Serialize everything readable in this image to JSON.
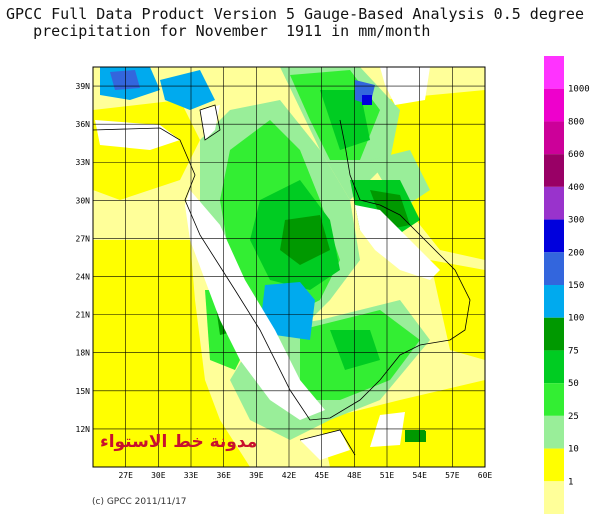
{
  "title": {
    "line1": "GPCC Full Data Product Version 5 Gauge-Based Analysis 0.5 degree",
    "line2": "precipitation for November  1911 in mm/month"
  },
  "map": {
    "lat_labels": [
      "39N",
      "36N",
      "33N",
      "30N",
      "27N",
      "24N",
      "21N",
      "18N",
      "15N",
      "12N"
    ],
    "lon_labels": [
      "27E",
      "30E",
      "33E",
      "36E",
      "39E",
      "42E",
      "45E",
      "48E",
      "51E",
      "54E",
      "57E",
      "60E"
    ],
    "lon_range": [
      24,
      60
    ],
    "lat_range": [
      9,
      40.5
    ]
  },
  "legend": {
    "levels": [
      "1000",
      "800",
      "600",
      "400",
      "300",
      "200",
      "150",
      "100",
      "75",
      "50",
      "25",
      "10",
      "1"
    ],
    "colors": [
      "#ff33ff",
      "#ee00cc",
      "#cc0099",
      "#990066",
      "#9933cc",
      "#0000dd",
      "#3366dd",
      "#00aaee",
      "#009900",
      "#00cc22",
      "#33ee33",
      "#99ee99",
      "#ffff00",
      "#ffff99"
    ]
  },
  "copyright": "(c) GPCC 2011/11/17",
  "watermark": "مدونة خط الاستواء"
}
